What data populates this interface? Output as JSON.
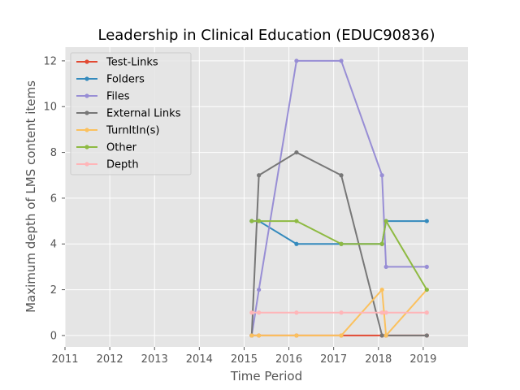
{
  "chart_data": {
    "type": "line",
    "title": "Leadership in Clinical Education (EDUC90836)",
    "xlabel": "Time Period",
    "ylabel": "Maximum depth of LMS content items",
    "xlim": [
      2011,
      2020
    ],
    "ylim": [
      -0.5,
      12.6
    ],
    "xticks": [
      2011,
      2012,
      2013,
      2014,
      2015,
      2016,
      2017,
      2018,
      2019
    ],
    "yticks": [
      0,
      2,
      4,
      6,
      8,
      10,
      12
    ],
    "x": [
      2015.17,
      2015.33,
      2016.17,
      2017.17,
      2018.08,
      2018.17,
      2019.08
    ],
    "grid": true,
    "legend_position": "top-left",
    "series": [
      {
        "name": "Test-Links",
        "color": "#E24A33",
        "values": [
          0,
          0,
          0,
          0,
          0,
          0,
          0
        ]
      },
      {
        "name": "Folders",
        "color": "#348ABD",
        "values": [
          5,
          5,
          4,
          4,
          4,
          5,
          5
        ]
      },
      {
        "name": "Files",
        "color": "#988ED5",
        "values": [
          0,
          2,
          12,
          12,
          7,
          3,
          3
        ]
      },
      {
        "name": "External Links",
        "color": "#777777",
        "values": [
          0,
          7,
          8,
          7,
          0,
          0,
          0
        ]
      },
      {
        "name": "TurnItIn(s)",
        "color": "#FBC15E",
        "values": [
          0,
          0,
          0,
          0,
          2,
          0,
          2
        ]
      },
      {
        "name": "Other",
        "color": "#8EBA42",
        "values": [
          5,
          5,
          5,
          4,
          4,
          5,
          2
        ]
      },
      {
        "name": "Depth",
        "color": "#FFB5B8",
        "values": [
          1,
          1,
          1,
          1,
          1,
          1,
          1
        ]
      }
    ]
  }
}
